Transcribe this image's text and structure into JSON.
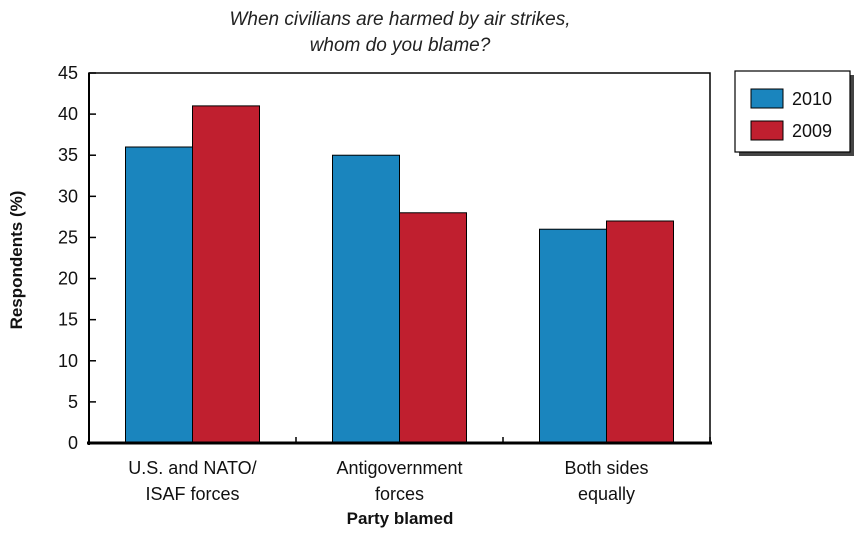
{
  "chart_data": {
    "type": "bar",
    "title": [
      "When civilians are harmed by air strikes,",
      "whom do you blame?"
    ],
    "xlabel": "Party blamed",
    "ylabel": "Respondents (%)",
    "ylim": [
      0,
      45
    ],
    "yticks": [
      0,
      5,
      10,
      15,
      20,
      25,
      30,
      35,
      40,
      45
    ],
    "categories": [
      [
        "U.S. and NATO/",
        "ISAF forces"
      ],
      [
        "Antigovernment",
        "forces"
      ],
      [
        "Both sides",
        "equally"
      ]
    ],
    "series": [
      {
        "name": "2010",
        "color": "#1a85be",
        "values": [
          36,
          35,
          26
        ]
      },
      {
        "name": "2009",
        "color": "#c01f2f",
        "values": [
          41,
          28,
          27
        ]
      }
    ],
    "legend_position": "top-right",
    "grid": false
  }
}
